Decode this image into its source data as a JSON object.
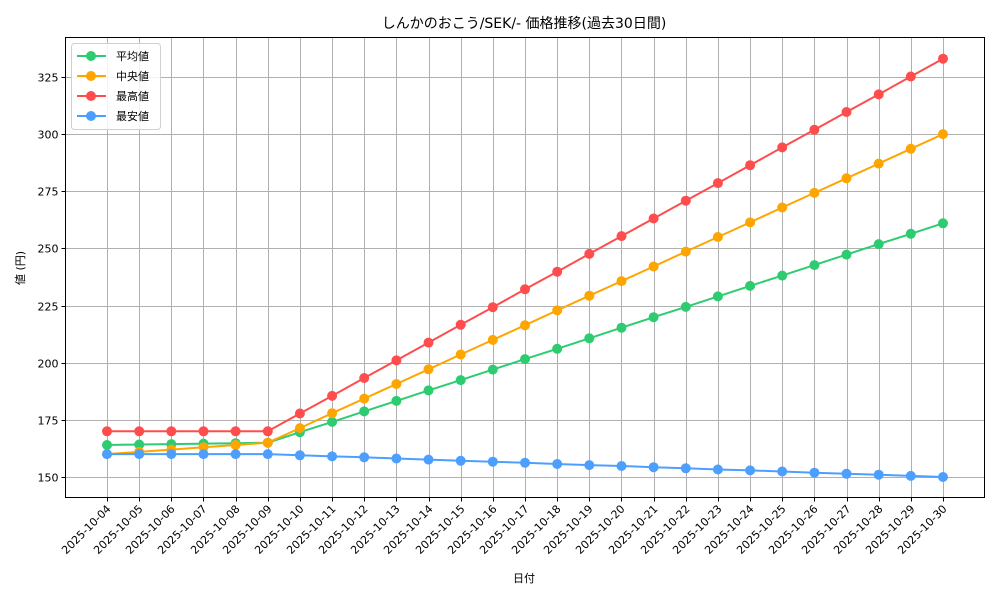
{
  "chart_data": {
    "type": "line",
    "title": "しんかのおこう/SEK/- 価格推移(過去30日間)",
    "xlabel": "日付",
    "ylabel": "値 (円)",
    "ylim": [
      141,
      342
    ],
    "yticks": [
      150,
      175,
      200,
      225,
      250,
      275,
      300,
      325
    ],
    "grid": true,
    "legend_position": "upper left",
    "categories": [
      "2025-10-04",
      "2025-10-05",
      "2025-10-06",
      "2025-10-07",
      "2025-10-08",
      "2025-10-09",
      "2025-10-10",
      "2025-10-11",
      "2025-10-12",
      "2025-10-13",
      "2025-10-14",
      "2025-10-15",
      "2025-10-16",
      "2025-10-17",
      "2025-10-18",
      "2025-10-19",
      "2025-10-20",
      "2025-10-21",
      "2025-10-22",
      "2025-10-23",
      "2025-10-24",
      "2025-10-25",
      "2025-10-26",
      "2025-10-27",
      "2025-10-28",
      "2025-10-29",
      "2025-10-30"
    ],
    "series": [
      {
        "name": "平均値",
        "color": "#2ecc71",
        "values": [
          164.0,
          164.2,
          164.4,
          164.6,
          164.8,
          165.0,
          169.6,
          174.1,
          178.7,
          183.3,
          187.9,
          192.4,
          197.0,
          201.6,
          206.1,
          210.7,
          215.3,
          219.9,
          224.4,
          229.0,
          233.6,
          238.1,
          242.7,
          247.3,
          251.9,
          256.4,
          261.0
        ]
      },
      {
        "name": "中央値",
        "color": "#ffa500",
        "values": [
          160.0,
          161.0,
          162.0,
          163.0,
          164.0,
          165.0,
          171.4,
          177.9,
          184.3,
          190.7,
          197.1,
          203.6,
          210.0,
          216.4,
          222.9,
          229.3,
          235.7,
          242.1,
          248.6,
          255.0,
          261.4,
          267.9,
          274.3,
          280.7,
          287.1,
          293.6,
          300.0
        ]
      },
      {
        "name": "最高値",
        "color": "#ff4d4d",
        "values": [
          170.0,
          170.0,
          170.0,
          170.0,
          170.0,
          170.0,
          177.8,
          185.5,
          193.3,
          201.0,
          208.8,
          216.6,
          224.3,
          232.1,
          239.8,
          247.6,
          255.4,
          263.1,
          270.9,
          278.6,
          286.4,
          294.2,
          301.9,
          309.7,
          317.4,
          325.2,
          333.0
        ]
      },
      {
        "name": "最安値",
        "color": "#4d9fff",
        "values": [
          160.0,
          160.0,
          160.0,
          160.0,
          160.0,
          160.0,
          159.5,
          159.0,
          158.6,
          158.1,
          157.6,
          157.1,
          156.7,
          156.2,
          155.7,
          155.2,
          154.8,
          154.3,
          153.8,
          153.3,
          152.9,
          152.4,
          151.9,
          151.4,
          151.0,
          150.5,
          150.0
        ]
      }
    ]
  }
}
